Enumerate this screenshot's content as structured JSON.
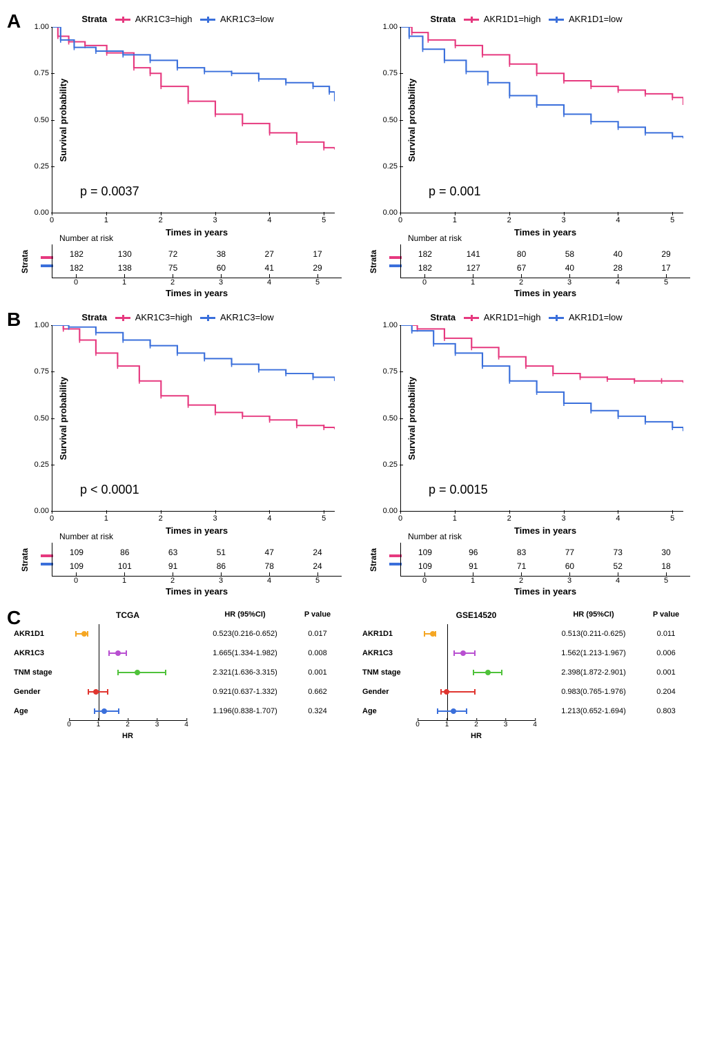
{
  "colors": {
    "high": "#e6397f",
    "low": "#3a6fdb",
    "axis": "#000000",
    "bg": "#ffffff",
    "forest": [
      "#f5a623",
      "#b84fd1",
      "#4fc23a",
      "#e0352f",
      "#3a6fdb"
    ]
  },
  "panels": {
    "A": {
      "label": "A",
      "left": {
        "gene": "AKR1C3",
        "legend_prefix": "Strata",
        "legend_high": "AKR1C3=high",
        "legend_low": "AKR1C3=low",
        "ylabel": "Survival probability",
        "xlabel": "Times in years",
        "yticks": [
          "0.00",
          "0.25",
          "0.50",
          "0.75",
          "1.00"
        ],
        "xticks": [
          "0",
          "1",
          "2",
          "3",
          "4",
          "5"
        ],
        "pvalue": "p = 0.0037",
        "risk_title": "Number at risk",
        "risk_high": [
          "182",
          "130",
          "72",
          "38",
          "27",
          "17"
        ],
        "risk_low": [
          "182",
          "138",
          "75",
          "60",
          "41",
          "29"
        ],
        "curve_high": [
          [
            0,
            1.0
          ],
          [
            0.1,
            0.95
          ],
          [
            0.3,
            0.92
          ],
          [
            0.6,
            0.9
          ],
          [
            1.0,
            0.86
          ],
          [
            1.5,
            0.78
          ],
          [
            1.8,
            0.75
          ],
          [
            2.0,
            0.68
          ],
          [
            2.5,
            0.6
          ],
          [
            3.0,
            0.53
          ],
          [
            3.5,
            0.48
          ],
          [
            4.0,
            0.43
          ],
          [
            4.5,
            0.38
          ],
          [
            5.0,
            0.35
          ],
          [
            5.2,
            0.34
          ]
        ],
        "curve_low": [
          [
            0,
            1.0
          ],
          [
            0.15,
            0.93
          ],
          [
            0.4,
            0.89
          ],
          [
            0.8,
            0.87
          ],
          [
            1.3,
            0.85
          ],
          [
            1.8,
            0.82
          ],
          [
            2.3,
            0.78
          ],
          [
            2.8,
            0.76
          ],
          [
            3.3,
            0.75
          ],
          [
            3.8,
            0.72
          ],
          [
            4.3,
            0.7
          ],
          [
            4.8,
            0.68
          ],
          [
            5.1,
            0.65
          ],
          [
            5.2,
            0.6
          ]
        ]
      },
      "right": {
        "gene": "AKR1D1",
        "legend_prefix": "Strata",
        "legend_high": "AKR1D1=high",
        "legend_low": "AKR1D1=low",
        "ylabel": "Survival probability",
        "xlabel": "Times in years",
        "yticks": [
          "0.00",
          "0.25",
          "0.50",
          "0.75",
          "1.00"
        ],
        "xticks": [
          "0",
          "1",
          "2",
          "3",
          "4",
          "5"
        ],
        "pvalue": "p = 0.001",
        "risk_title": "Number at risk",
        "risk_high": [
          "182",
          "141",
          "80",
          "58",
          "40",
          "29"
        ],
        "risk_low": [
          "182",
          "127",
          "67",
          "40",
          "28",
          "17"
        ],
        "curve_high": [
          [
            0,
            1.0
          ],
          [
            0.2,
            0.97
          ],
          [
            0.5,
            0.93
          ],
          [
            1.0,
            0.9
          ],
          [
            1.5,
            0.85
          ],
          [
            2.0,
            0.8
          ],
          [
            2.5,
            0.75
          ],
          [
            3.0,
            0.71
          ],
          [
            3.5,
            0.68
          ],
          [
            4.0,
            0.66
          ],
          [
            4.5,
            0.64
          ],
          [
            5.0,
            0.62
          ],
          [
            5.2,
            0.58
          ]
        ],
        "curve_low": [
          [
            0,
            1.0
          ],
          [
            0.15,
            0.95
          ],
          [
            0.4,
            0.88
          ],
          [
            0.8,
            0.82
          ],
          [
            1.2,
            0.76
          ],
          [
            1.6,
            0.7
          ],
          [
            2.0,
            0.63
          ],
          [
            2.5,
            0.58
          ],
          [
            3.0,
            0.53
          ],
          [
            3.5,
            0.49
          ],
          [
            4.0,
            0.46
          ],
          [
            4.5,
            0.43
          ],
          [
            5.0,
            0.41
          ],
          [
            5.2,
            0.4
          ]
        ]
      }
    },
    "B": {
      "label": "B",
      "left": {
        "gene": "AKR1C3",
        "legend_prefix": "Strata",
        "legend_high": "AKR1C3=high",
        "legend_low": "AKR1C3=low",
        "ylabel": "Survival probability",
        "xlabel": "Times in years",
        "yticks": [
          "0.00",
          "0.25",
          "0.50",
          "0.75",
          "1.00"
        ],
        "xticks": [
          "0",
          "1",
          "2",
          "3",
          "4",
          "5"
        ],
        "pvalue": "p < 0.0001",
        "risk_title": "Number at risk",
        "risk_high": [
          "109",
          "86",
          "63",
          "51",
          "47",
          "24"
        ],
        "risk_low": [
          "109",
          "101",
          "91",
          "86",
          "78",
          "24"
        ],
        "curve_high": [
          [
            0,
            1.0
          ],
          [
            0.2,
            0.98
          ],
          [
            0.5,
            0.92
          ],
          [
            0.8,
            0.85
          ],
          [
            1.2,
            0.78
          ],
          [
            1.6,
            0.7
          ],
          [
            2.0,
            0.62
          ],
          [
            2.5,
            0.57
          ],
          [
            3.0,
            0.53
          ],
          [
            3.5,
            0.51
          ],
          [
            4.0,
            0.49
          ],
          [
            4.5,
            0.46
          ],
          [
            5.0,
            0.45
          ],
          [
            5.2,
            0.44
          ]
        ],
        "curve_low": [
          [
            0,
            1.0
          ],
          [
            0.3,
            0.99
          ],
          [
            0.8,
            0.96
          ],
          [
            1.3,
            0.92
          ],
          [
            1.8,
            0.89
          ],
          [
            2.3,
            0.85
          ],
          [
            2.8,
            0.82
          ],
          [
            3.3,
            0.79
          ],
          [
            3.8,
            0.76
          ],
          [
            4.3,
            0.74
          ],
          [
            4.8,
            0.72
          ],
          [
            5.2,
            0.7
          ]
        ]
      },
      "right": {
        "gene": "AKR1D1",
        "legend_prefix": "Strata",
        "legend_high": "AKR1D1=high",
        "legend_low": "AKR1D1=low",
        "ylabel": "Survival probability",
        "xlabel": "Times in years",
        "yticks": [
          "0.00",
          "0.25",
          "0.50",
          "0.75",
          "1.00"
        ],
        "xticks": [
          "0",
          "1",
          "2",
          "3",
          "4",
          "5"
        ],
        "pvalue": "p = 0.0015",
        "risk_title": "Number at risk",
        "risk_high": [
          "109",
          "96",
          "83",
          "77",
          "73",
          "30"
        ],
        "risk_low": [
          "109",
          "91",
          "71",
          "60",
          "52",
          "18"
        ],
        "curve_high": [
          [
            0,
            1.0
          ],
          [
            0.3,
            0.98
          ],
          [
            0.8,
            0.93
          ],
          [
            1.3,
            0.88
          ],
          [
            1.8,
            0.83
          ],
          [
            2.3,
            0.78
          ],
          [
            2.8,
            0.74
          ],
          [
            3.3,
            0.72
          ],
          [
            3.8,
            0.71
          ],
          [
            4.3,
            0.7
          ],
          [
            4.8,
            0.7
          ],
          [
            5.2,
            0.69
          ]
        ],
        "curve_low": [
          [
            0,
            1.0
          ],
          [
            0.2,
            0.97
          ],
          [
            0.6,
            0.9
          ],
          [
            1.0,
            0.85
          ],
          [
            1.5,
            0.78
          ],
          [
            2.0,
            0.7
          ],
          [
            2.5,
            0.64
          ],
          [
            3.0,
            0.58
          ],
          [
            3.5,
            0.54
          ],
          [
            4.0,
            0.51
          ],
          [
            4.5,
            0.48
          ],
          [
            5.0,
            0.45
          ],
          [
            5.2,
            0.43
          ]
        ]
      }
    },
    "C": {
      "label": "C",
      "left": {
        "title": "TCGA",
        "hr_header": "HR (95%CI)",
        "p_header": "P value",
        "xlabel": "HR",
        "xticks": [
          "0",
          "1",
          "2",
          "3",
          "4"
        ],
        "xmax": 4,
        "rows": [
          {
            "label": "AKR1D1",
            "hr": 0.523,
            "ci_low": 0.216,
            "ci_high": 0.652,
            "hr_text": "0.523(0.216-0.652)",
            "p": "0.017",
            "color": "#f5a623"
          },
          {
            "label": "AKR1C3",
            "hr": 1.665,
            "ci_low": 1.334,
            "ci_high": 1.982,
            "hr_text": "1.665(1.334-1.982)",
            "p": "0.008",
            "color": "#b84fd1"
          },
          {
            "label": "TNM stage",
            "hr": 2.321,
            "ci_low": 1.636,
            "ci_high": 3.315,
            "hr_text": "2.321(1.636-3.315)",
            "p": "0.001",
            "color": "#4fc23a"
          },
          {
            "label": "Gender",
            "hr": 0.921,
            "ci_low": 0.637,
            "ci_high": 1.332,
            "hr_text": "0.921(0.637-1.332)",
            "p": "0.662",
            "color": "#e0352f"
          },
          {
            "label": "Age",
            "hr": 1.196,
            "ci_low": 0.838,
            "ci_high": 1.707,
            "hr_text": "1.196(0.838-1.707)",
            "p": "0.324",
            "color": "#3a6fdb"
          }
        ]
      },
      "right": {
        "title": "GSE14520",
        "hr_header": "HR (95%CI)",
        "p_header": "P value",
        "xlabel": "HR",
        "xticks": [
          "0",
          "1",
          "2",
          "3",
          "4"
        ],
        "xmax": 4,
        "rows": [
          {
            "label": "AKR1D1",
            "hr": 0.513,
            "ci_low": 0.211,
            "ci_high": 0.625,
            "hr_text": "0.513(0.211-0.625)",
            "p": "0.011",
            "color": "#f5a623"
          },
          {
            "label": "AKR1C3",
            "hr": 1.562,
            "ci_low": 1.213,
            "ci_high": 1.967,
            "hr_text": "1.562(1.213-1.967)",
            "p": "0.006",
            "color": "#b84fd1"
          },
          {
            "label": "TNM stage",
            "hr": 2.398,
            "ci_low": 1.872,
            "ci_high": 2.901,
            "hr_text": "2.398(1.872-2.901)",
            "p": "0.001",
            "color": "#4fc23a"
          },
          {
            "label": "Gender",
            "hr": 0.983,
            "ci_low": 0.765,
            "ci_high": 1.976,
            "hr_text": "0.983(0.765-1.976)",
            "p": "0.204",
            "color": "#e0352f"
          },
          {
            "label": "Age",
            "hr": 1.213,
            "ci_low": 0.652,
            "ci_high": 1.694,
            "hr_text": "1.213(0.652-1.694)",
            "p": "0.803",
            "color": "#3a6fdb"
          }
        ]
      }
    }
  }
}
